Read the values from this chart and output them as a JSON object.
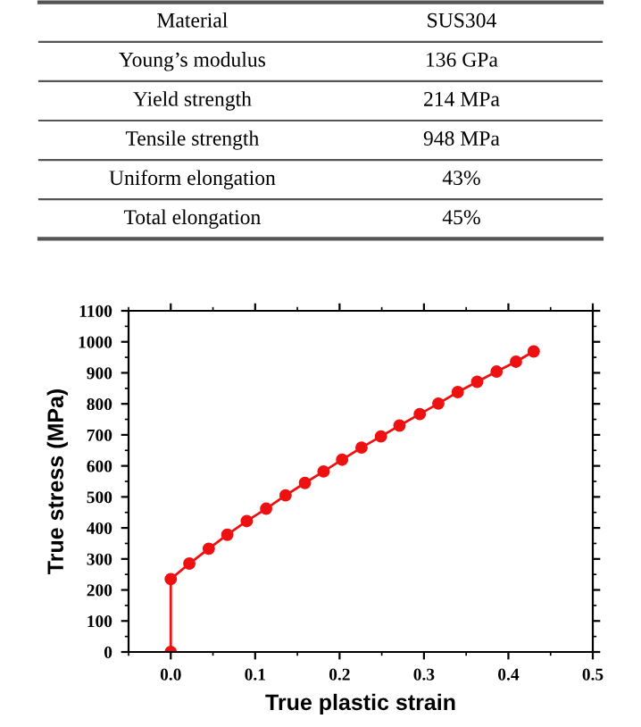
{
  "chart_data": [
    {
      "type": "other",
      "annotations": [
        "Material",
        "SUS304",
        "Young’s modulus",
        "136 GPa",
        "Yield strength",
        "214 MPa",
        "Tensile strength",
        "948 MPa",
        "Uniform elongation",
        "43%",
        "Total elongation",
        "45%"
      ]
    },
    {
      "type": "line",
      "xlabel": "True plastic strain",
      "ylabel": "True stress (MPa)",
      "xlim": [
        -0.05,
        0.5
      ],
      "xticks": [
        {
          "value": 0,
          "label": "0.0"
        },
        0.1,
        0.2,
        0.3,
        0.4,
        0.5
      ],
      "ylim": [
        0,
        1100
      ],
      "yticks": [
        0,
        100,
        200,
        300,
        400,
        500,
        600,
        700,
        800,
        900,
        1000,
        1100
      ],
      "grid": false,
      "marker": "circle",
      "line_style": "solid",
      "series": [
        {
          "color": "#ee1111",
          "x": [
            0,
            0,
            0.022,
            0.045,
            0.067,
            0.09,
            0.113,
            0.136,
            0.159,
            0.181,
            0.203,
            0.226,
            0.249,
            0.271,
            0.295,
            0.317,
            0.34,
            0.363,
            0.386,
            0.409,
            0.43
          ],
          "values": [
            0,
            235,
            285,
            333,
            378,
            422,
            462,
            505,
            545,
            582,
            620,
            659,
            695,
            730,
            767,
            801,
            838,
            871,
            904,
            936,
            969
          ]
        }
      ]
    }
  ]
}
